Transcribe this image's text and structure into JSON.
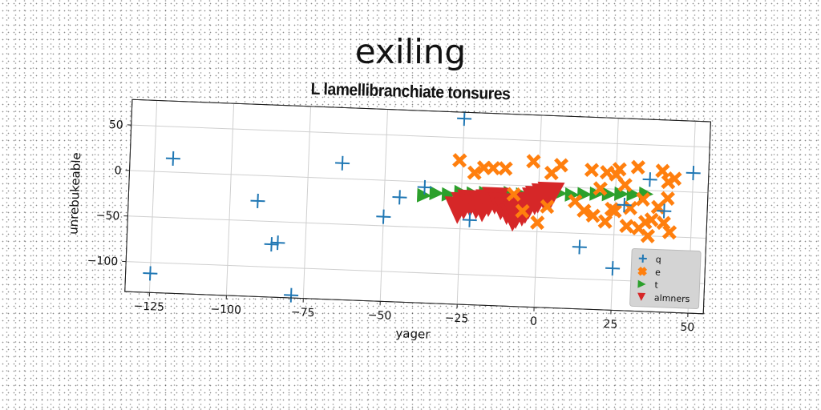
{
  "chart_data": {
    "type": "scatter",
    "title": "exiling",
    "subtitle": "L lamellibranchiate tonsures",
    "xlabel": "yager",
    "ylabel": "unrebukeable",
    "xlim": [
      -133,
      55
    ],
    "ylim": [
      -133,
      78
    ],
    "xticks": [
      -125,
      -100,
      -75,
      -50,
      -25,
      0,
      25,
      50
    ],
    "yticks": [
      -100,
      -50,
      0,
      50
    ],
    "xtick_labels": [
      "−125",
      "−100",
      "−75",
      "−50",
      "−25",
      "0",
      "25",
      "50"
    ],
    "ytick_labels": [
      "−100",
      "−50",
      "0",
      "50"
    ],
    "grid": true,
    "legend": "bottom-right",
    "series": [
      {
        "name": "q",
        "marker": "plus",
        "color": "#1f77b4",
        "points": [
          [
            -125,
            -112
          ],
          [
            -119,
            15
          ],
          [
            -91,
            -28
          ],
          [
            -86,
            -75
          ],
          [
            -84,
            -73
          ],
          [
            -79,
            -130
          ],
          [
            -64,
            17
          ],
          [
            -50,
            -40
          ],
          [
            -45,
            -18
          ],
          [
            -37,
            -6
          ],
          [
            -25,
            71
          ],
          [
            -22,
            -40
          ],
          [
            14,
            -65
          ],
          [
            25,
            -87
          ],
          [
            28,
            -17
          ],
          [
            36,
            12
          ],
          [
            41,
            -22
          ],
          [
            50,
            21
          ]
        ]
      },
      {
        "name": "e",
        "marker": "x",
        "color": "#ff7f0e",
        "points": [
          [
            -26,
            25
          ],
          [
            -21,
            12
          ],
          [
            -18,
            18
          ],
          [
            -15,
            18
          ],
          [
            -11,
            18
          ],
          [
            -8,
            -10
          ],
          [
            -5,
            -28
          ],
          [
            -2,
            27
          ],
          [
            0,
            -40
          ],
          [
            3,
            -22
          ],
          [
            4,
            15
          ],
          [
            7,
            24
          ],
          [
            12,
            -15
          ],
          [
            15,
            -25
          ],
          [
            17,
            20
          ],
          [
            18,
            -30
          ],
          [
            22,
            -36
          ],
          [
            20,
            0
          ],
          [
            22,
            18
          ],
          [
            24,
            -22
          ],
          [
            25,
            -24
          ],
          [
            25,
            16
          ],
          [
            26,
            22
          ],
          [
            28,
            5
          ],
          [
            29,
            -40
          ],
          [
            30,
            -20
          ],
          [
            32,
            25
          ],
          [
            33,
            -42
          ],
          [
            34,
            -10
          ],
          [
            35,
            -35
          ],
          [
            36,
            -50
          ],
          [
            37,
            -32
          ],
          [
            39,
            -18
          ],
          [
            40,
            22
          ],
          [
            41,
            -35
          ],
          [
            42,
            10
          ],
          [
            42,
            -8
          ],
          [
            43,
            -45
          ],
          [
            44,
            14
          ]
        ]
      },
      {
        "name": "t",
        "marker": "triangle-right",
        "color": "#2ca02c",
        "points": [
          [
            -37,
            -15
          ],
          [
            -33,
            -12
          ],
          [
            -29,
            -13
          ],
          [
            -25,
            -10
          ],
          [
            -21,
            -11
          ],
          [
            -17,
            -10
          ],
          [
            -13,
            -11
          ],
          [
            -9,
            -9
          ],
          [
            -5,
            -10
          ],
          [
            -1,
            -8
          ],
          [
            3,
            -9
          ],
          [
            7,
            -7
          ],
          [
            11,
            -8
          ],
          [
            15,
            -7
          ],
          [
            19,
            -6
          ],
          [
            23,
            -6
          ],
          [
            27,
            -5
          ],
          [
            31,
            -5
          ],
          [
            35,
            -4
          ]
        ]
      },
      {
        "name": "almners",
        "marker": "triangle-down",
        "color": "#d62728",
        "points": [
          [
            -26,
            -30
          ],
          [
            -24,
            -25
          ],
          [
            -22,
            -22
          ],
          [
            -20,
            -24
          ],
          [
            -18,
            -27
          ],
          [
            -16,
            -21
          ],
          [
            -14,
            -18
          ],
          [
            -12,
            -24
          ],
          [
            -10,
            -29
          ],
          [
            -8,
            -36
          ],
          [
            -7,
            -33
          ],
          [
            -5,
            -30
          ],
          [
            -4,
            -27
          ],
          [
            -3,
            -22
          ],
          [
            -1,
            -17
          ],
          [
            0,
            -15
          ],
          [
            2,
            -12
          ],
          [
            4,
            -10
          ]
        ]
      }
    ]
  }
}
